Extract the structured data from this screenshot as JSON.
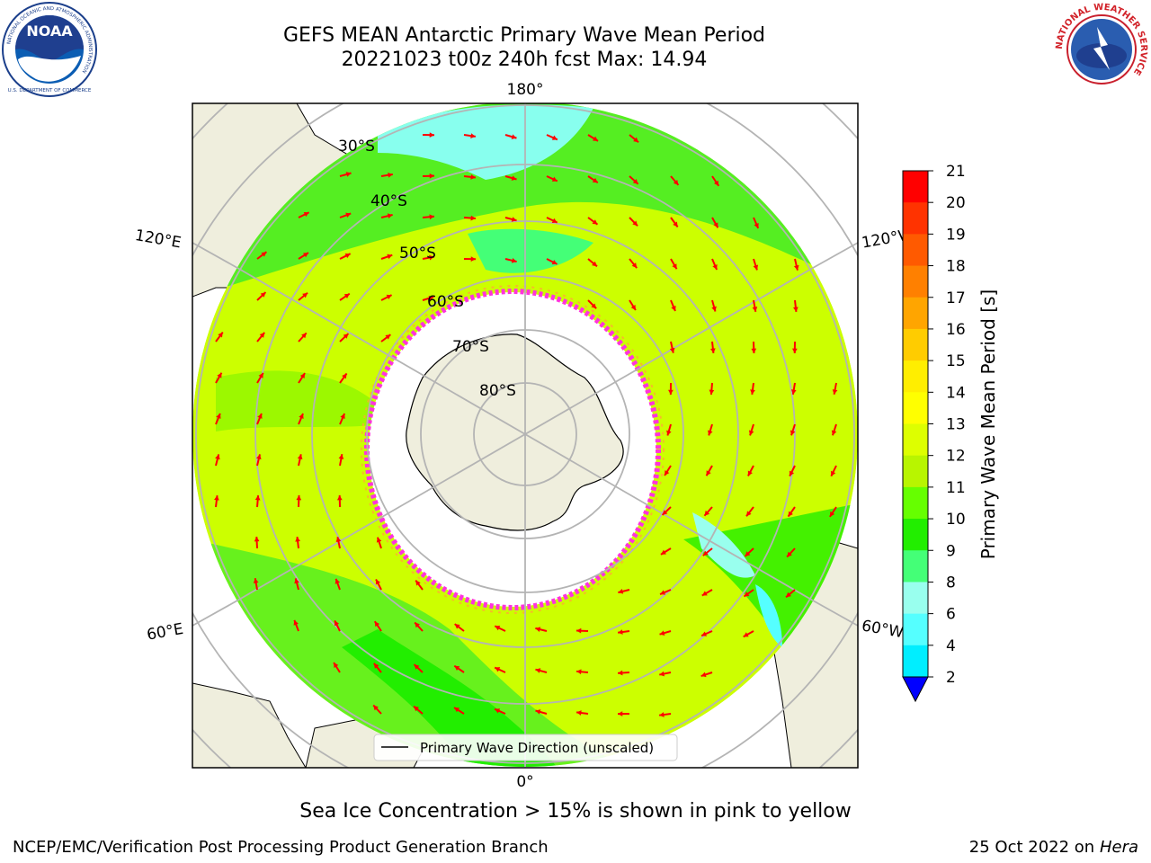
{
  "header": {
    "title_line1": "GEFS MEAN Antarctic Primary Wave Mean Period",
    "title_line2": "20221023 t00z 240h fcst   Max: 14.94"
  },
  "logos": {
    "left": {
      "name": "NOAA",
      "ring_text": "NATIONAL OCEANIC AND ATMOSPHERIC ADMINISTRATION",
      "bottom_text": "U.S. DEPARTMENT OF COMMERCE"
    },
    "right": {
      "ring_text": "NATIONAL WEATHER SERVICE"
    }
  },
  "map": {
    "longitude_labels": {
      "top": "180°",
      "bottom": "0°",
      "upper_left": "120°E",
      "upper_right": "120°W",
      "lower_left": "60°E",
      "lower_right": "60°W"
    },
    "latitude_labels": [
      "30°S",
      "40°S",
      "50°S",
      "60°S",
      "70°S",
      "80°S"
    ],
    "legend_label": "Primary Wave Direction (unscaled)",
    "colors": {
      "land": "#efeedd",
      "ocean_green": "#55ee22",
      "ocean_yellow": "#ccff00",
      "ice_free_white": "#ffffff",
      "arrow": "#ff0000",
      "grid": "#b4b4b4",
      "sea_ice": "#ff33dd"
    }
  },
  "colorbar": {
    "label": "Primary Wave Mean Period [s]",
    "ticks": [
      "21",
      "20",
      "19",
      "18",
      "17",
      "16",
      "15",
      "14",
      "13",
      "12",
      "11",
      "10",
      "9",
      "8",
      "6",
      "4",
      "2"
    ],
    "colors": [
      "#ff0000",
      "#ff3300",
      "#ff5a00",
      "#ff8000",
      "#ffa500",
      "#ffcc00",
      "#ffee00",
      "#ffff00",
      "#ddff00",
      "#b8f500",
      "#66ff00",
      "#22ee00",
      "#44ff77",
      "#99ffee",
      "#55ffff",
      "#00eeff",
      "#0099ff",
      "#0055ff",
      "#0000ff"
    ]
  },
  "caption": "Sea Ice Concentration > 15% is shown in pink to yellow",
  "footer": {
    "left": "NCEP/EMC/Verification Post Processing Product Generation Branch",
    "right_prefix": "25 Oct 2022 on ",
    "right_host": "Hera"
  }
}
